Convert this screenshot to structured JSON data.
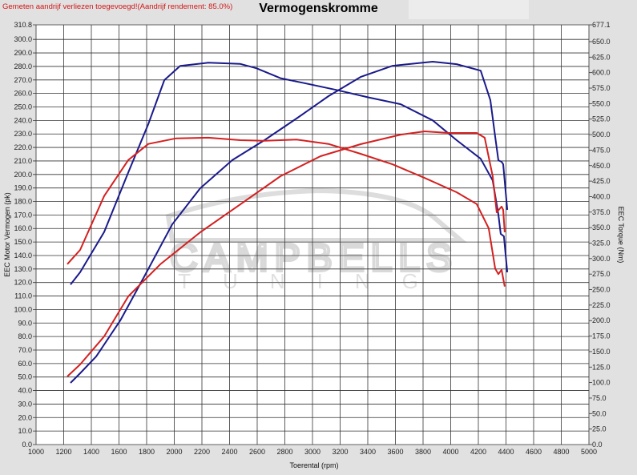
{
  "notice": "Gemeten aandrijf verliezen toegevoegd!(Aandrijf rendement: 85.0%)",
  "watermark": "CAMPBELLS TUNING",
  "chart_data": {
    "type": "line",
    "title": "Vermogenskromme",
    "xlabel": "Toerental (rpm)",
    "ylabel": "EEC Motor Vermogen (pk)",
    "y2label": "EEC Torque (Nm)",
    "xlim": [
      1000,
      5000
    ],
    "ylim": [
      0,
      310.8
    ],
    "y2lim": [
      0,
      677.1
    ],
    "grid": true,
    "xticks": [
      "1000",
      "1200",
      "1400",
      "1600",
      "1800",
      "2000",
      "2200",
      "2400",
      "2600",
      "2800",
      "3000",
      "3200",
      "3400",
      "3600",
      "3800",
      "4000",
      "4200",
      "4400",
      "4600",
      "4800",
      "5000"
    ],
    "yticks": [
      "310.8",
      "300.0",
      "290.0",
      "280.0",
      "270.0",
      "260.0",
      "250.0",
      "240.0",
      "230.0",
      "220.0",
      "210.0",
      "200.0",
      "190.0",
      "180.0",
      "170.0",
      "160.0",
      "150.0",
      "140.0",
      "130.0",
      "120.0",
      "110.0",
      "100.0",
      "90.0",
      "80.0",
      "70.0",
      "60.0",
      "50.0",
      "40.0",
      "30.0",
      "20.0",
      "10.0",
      "0.0"
    ],
    "y2ticks": [
      "677.1",
      "650.0",
      "625.0",
      "600.0",
      "575.0",
      "550.0",
      "525.0",
      "500.0",
      "475.0",
      "450.0",
      "425.0",
      "400.0",
      "375.0",
      "350.0",
      "325.0",
      "300.0",
      "275.0",
      "250.0",
      "225.0",
      "200.0",
      "175.0",
      "150.0",
      "125.0",
      "100.0",
      "75.0",
      "50.0",
      "25.0",
      "0.0"
    ],
    "series": [
      {
        "axis": "left",
        "color": "#1a1a8c",
        "points": [
          [
            1249,
            45.7
          ],
          [
            1319,
            52.8
          ],
          [
            1435,
            65.2
          ],
          [
            1609,
            91.9
          ],
          [
            1783,
            124.5
          ],
          [
            1985,
            163
          ],
          [
            2188,
            189.8
          ],
          [
            2420,
            210.6
          ],
          [
            2652,
            225.4
          ],
          [
            2884,
            241.4
          ],
          [
            3116,
            258
          ],
          [
            3348,
            272.2
          ],
          [
            3580,
            280.5
          ],
          [
            3870,
            283.5
          ],
          [
            4043,
            281.7
          ],
          [
            4217,
            276.9
          ],
          [
            4287,
            255
          ],
          [
            4322,
            228
          ],
          [
            4345,
            210.5
          ],
          [
            4368,
            209.4
          ],
          [
            4380,
            207.6
          ],
          [
            4409,
            173.8
          ]
        ]
      },
      {
        "axis": "right",
        "color": "#1a1a8c",
        "points": [
          [
            1249,
            258
          ],
          [
            1319,
            278
          ],
          [
            1493,
            343
          ],
          [
            1667,
            439
          ],
          [
            1812,
            517
          ],
          [
            1928,
            588
          ],
          [
            2043,
            611
          ],
          [
            2246,
            616
          ],
          [
            2478,
            614
          ],
          [
            2594,
            607
          ],
          [
            2768,
            591
          ],
          [
            2942,
            583
          ],
          [
            3174,
            572
          ],
          [
            3406,
            560
          ],
          [
            3638,
            549
          ],
          [
            3870,
            523
          ],
          [
            4043,
            491
          ],
          [
            4217,
            461
          ],
          [
            4304,
            426
          ],
          [
            4345,
            371
          ],
          [
            4362,
            340
          ],
          [
            4385,
            336
          ],
          [
            4409,
            278
          ]
        ]
      },
      {
        "axis": "left",
        "color": "#d42020",
        "points": [
          [
            1226,
            50.4
          ],
          [
            1319,
            59.3
          ],
          [
            1493,
            80.1
          ],
          [
            1667,
            109.7
          ],
          [
            1899,
            133.5
          ],
          [
            2188,
            157.2
          ],
          [
            2478,
            177.9
          ],
          [
            2768,
            198.7
          ],
          [
            3058,
            213.5
          ],
          [
            3348,
            222.4
          ],
          [
            3638,
            229.5
          ],
          [
            3812,
            231.9
          ],
          [
            3986,
            230.7
          ],
          [
            4188,
            230.7
          ],
          [
            4246,
            227.2
          ],
          [
            4304,
            198.7
          ],
          [
            4333,
            172
          ],
          [
            4368,
            176.2
          ],
          [
            4380,
            173.8
          ],
          [
            4391,
            157.2
          ]
        ]
      },
      {
        "axis": "right",
        "color": "#d42020",
        "points": [
          [
            1226,
            291
          ],
          [
            1319,
            314
          ],
          [
            1493,
            401
          ],
          [
            1667,
            459
          ],
          [
            1812,
            485
          ],
          [
            2014,
            494
          ],
          [
            2246,
            495
          ],
          [
            2478,
            491
          ],
          [
            2652,
            490
          ],
          [
            2884,
            492
          ],
          [
            3116,
            485
          ],
          [
            3348,
            469
          ],
          [
            3580,
            452
          ],
          [
            3812,
            430
          ],
          [
            4043,
            407
          ],
          [
            4188,
            388
          ],
          [
            4275,
            349
          ],
          [
            4322,
            284
          ],
          [
            4345,
            275
          ],
          [
            4368,
            282
          ],
          [
            4391,
            255
          ]
        ]
      }
    ]
  }
}
